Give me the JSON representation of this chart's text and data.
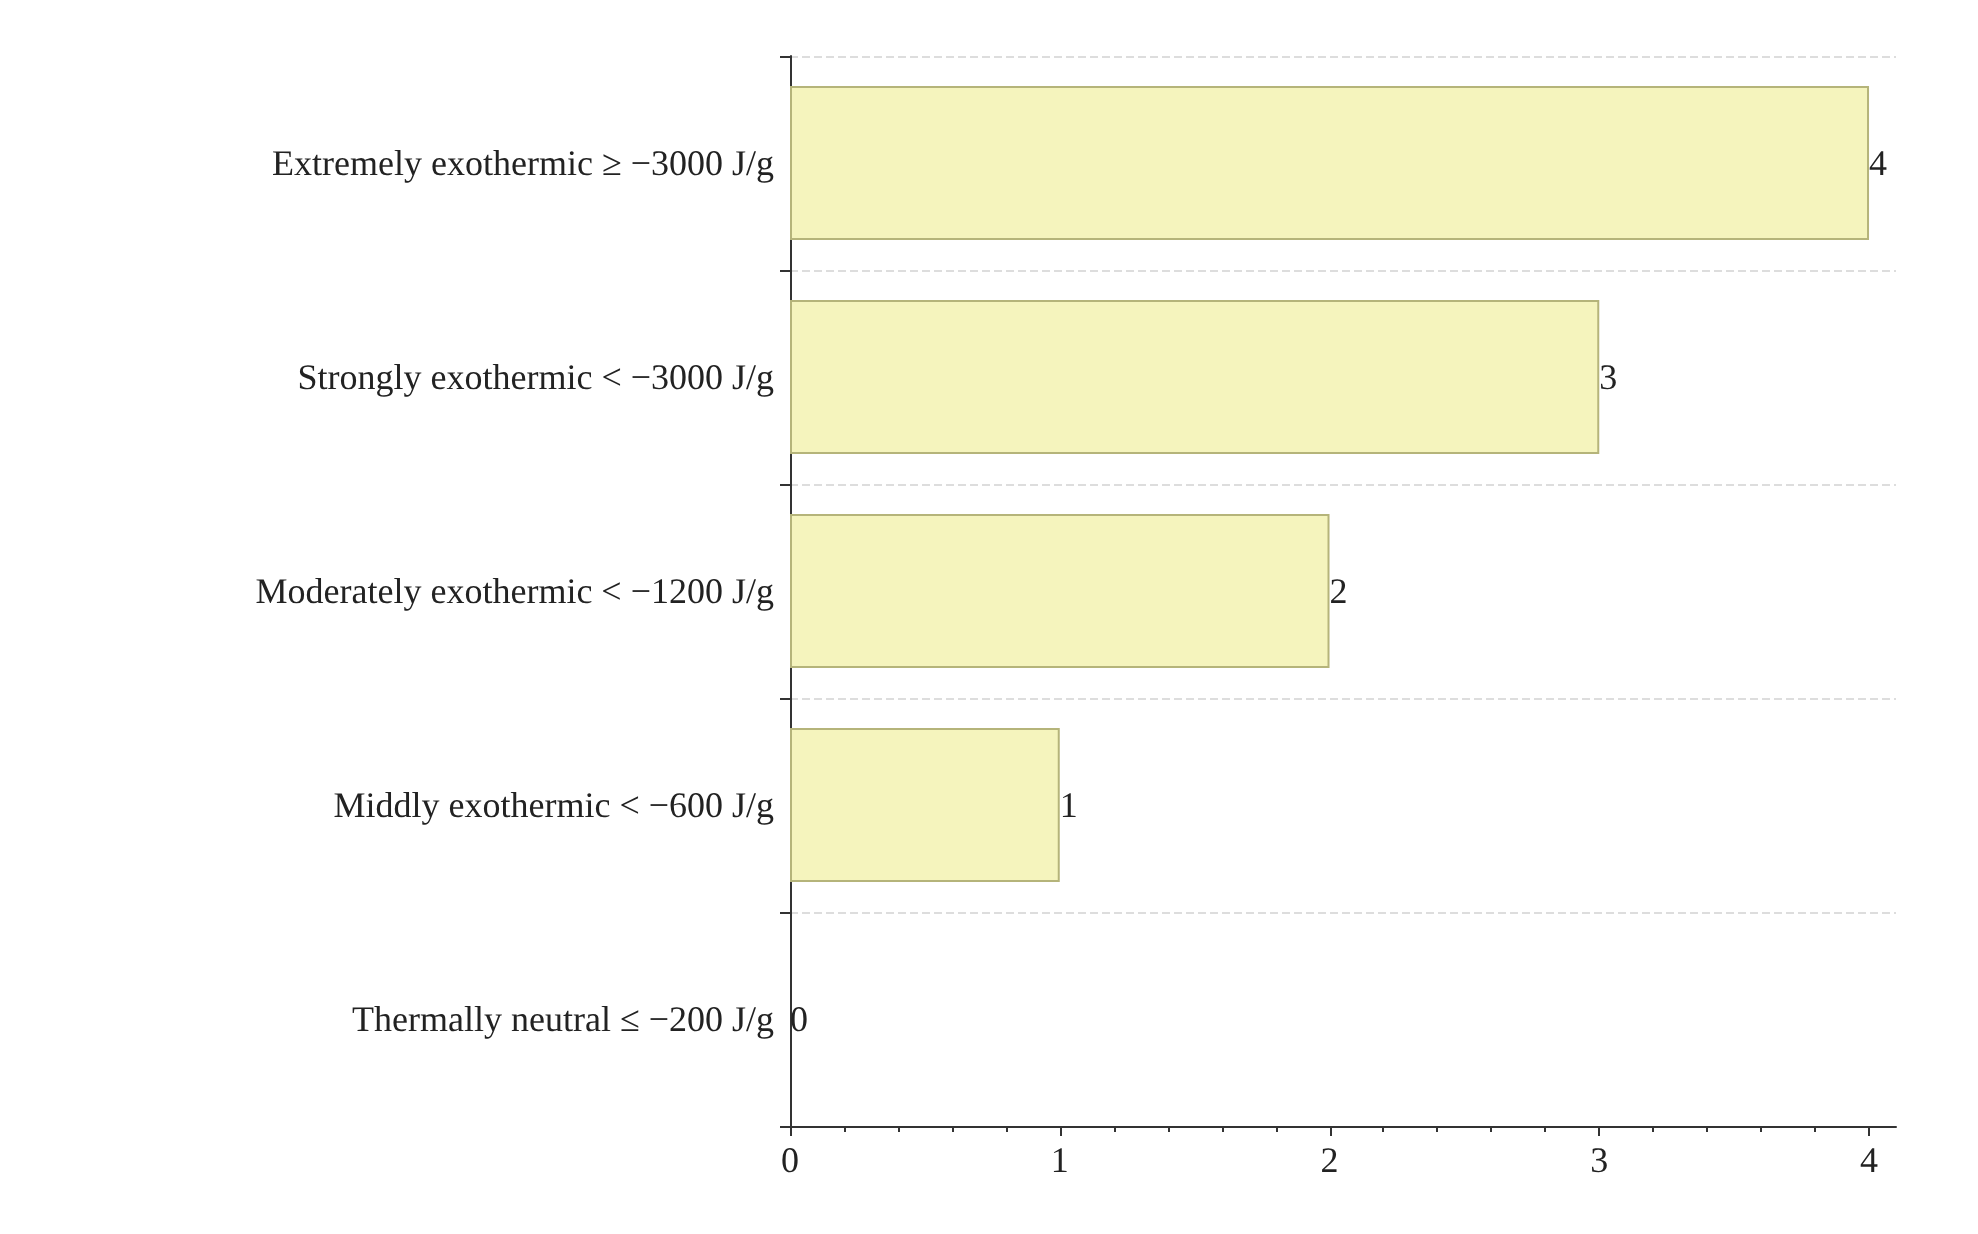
{
  "chart_data": {
    "type": "bar",
    "orientation": "horizontal",
    "categories": [
      "Extremely exothermic ≥ −3000 J/g",
      "Strongly exothermic < −3000 J/g",
      "Moderately exothermic < −1200 J/g",
      "Middly exothermic < −600 J/g",
      "Thermally neutral ≤ −200 J/g"
    ],
    "values": [
      4,
      3,
      2,
      1,
      0
    ],
    "color": "#f5f4bd",
    "xlim": [
      0,
      4.1
    ],
    "xticks": [
      0,
      1,
      2,
      3,
      4
    ],
    "grid": "y",
    "data_labels": true
  }
}
